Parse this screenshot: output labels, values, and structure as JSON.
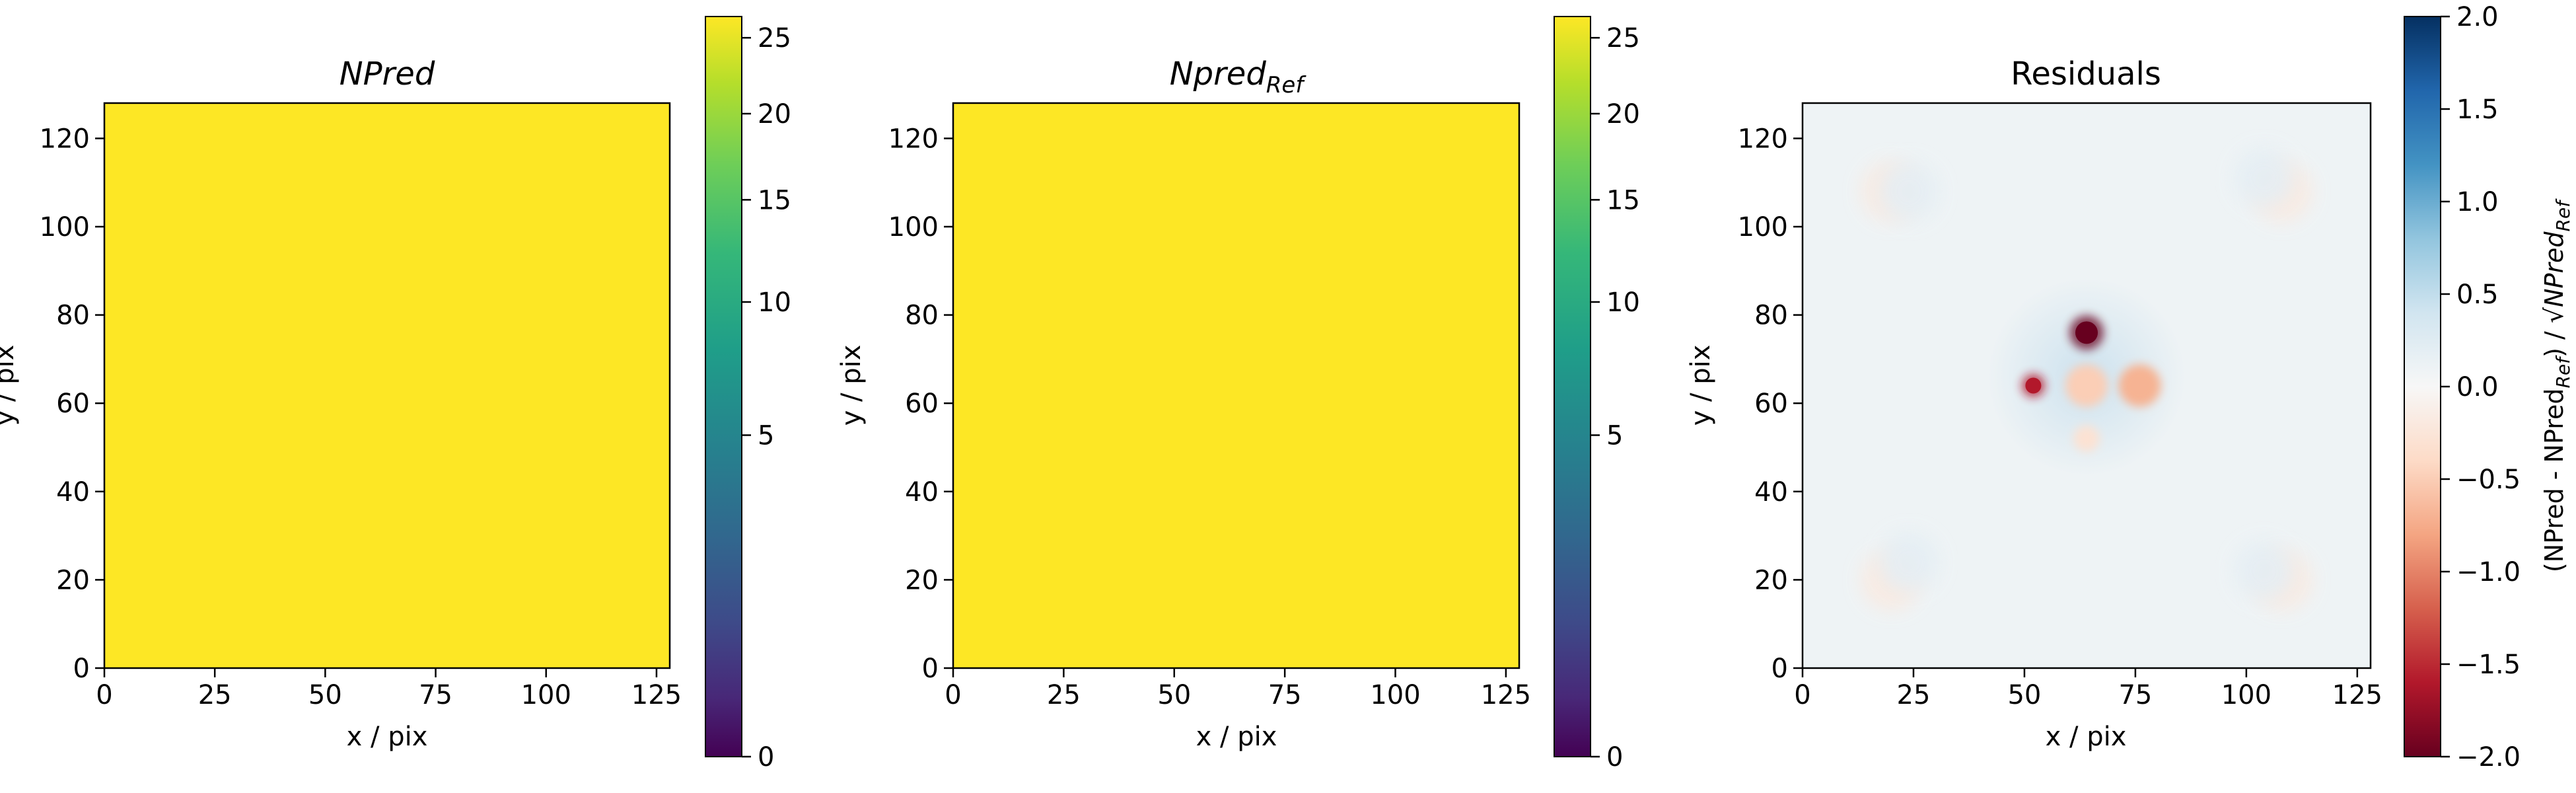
{
  "chart_data": [
    {
      "type": "heatmap",
      "title": "NPred",
      "xlabel": "x / pix",
      "ylabel": "y / pix",
      "xlim": [
        0,
        128
      ],
      "ylim": [
        0,
        128
      ],
      "x_ticks": [
        0,
        25,
        50,
        75,
        100,
        125
      ],
      "y_ticks": [
        0,
        20,
        40,
        60,
        80,
        100,
        120
      ],
      "colormap": "viridis",
      "color_scale": "power-law (sqrt-like)",
      "fill_value": 26,
      "fill_color": "#fde725",
      "colorbar": {
        "range": [
          0,
          26.5
        ],
        "ticks": [
          0,
          5,
          10,
          15,
          20,
          25
        ],
        "label": ""
      }
    },
    {
      "type": "heatmap",
      "title": "Npred",
      "title_subscript": "Ref",
      "xlabel": "x / pix",
      "ylabel": "y / pix",
      "xlim": [
        0,
        128
      ],
      "ylim": [
        0,
        128
      ],
      "x_ticks": [
        0,
        25,
        50,
        75,
        100,
        125
      ],
      "y_ticks": [
        0,
        20,
        40,
        60,
        80,
        100,
        120
      ],
      "colormap": "viridis",
      "color_scale": "power-law (sqrt-like)",
      "fill_value": 26,
      "fill_color": "#fde725",
      "colorbar": {
        "range": [
          0,
          26.5
        ],
        "ticks": [
          0,
          5,
          10,
          15,
          20,
          25
        ],
        "label": ""
      }
    },
    {
      "type": "heatmap",
      "title": "Residuals",
      "xlabel": "x / pix",
      "ylabel": "y / pix",
      "xlim": [
        0,
        128
      ],
      "ylim": [
        0,
        128
      ],
      "x_ticks": [
        0,
        25,
        50,
        75,
        100,
        125
      ],
      "y_ticks": [
        0,
        20,
        40,
        60,
        80,
        100,
        120
      ],
      "colormap": "RdBu",
      "color_scale": "linear",
      "background_value": 0.1,
      "features": [
        {
          "x": 64,
          "y": 76,
          "value": -2.0
        },
        {
          "x": 52,
          "y": 64,
          "value": -1.6
        },
        {
          "x": 76,
          "y": 64,
          "value": -0.7
        },
        {
          "x": 64,
          "y": 64,
          "value": -0.5
        },
        {
          "x": 64,
          "y": 52,
          "value": -0.3
        },
        {
          "x": 20,
          "y": 108,
          "value": -0.2
        },
        {
          "x": 108,
          "y": 108,
          "value": -0.2
        },
        {
          "x": 20,
          "y": 20,
          "value": -0.2
        },
        {
          "x": 108,
          "y": 20,
          "value": -0.2
        },
        {
          "x": 24,
          "y": 108,
          "value": 0.2
        },
        {
          "x": 104,
          "y": 111,
          "value": 0.2
        },
        {
          "x": 24,
          "y": 24,
          "value": 0.2
        },
        {
          "x": 104,
          "y": 22,
          "value": 0.2
        }
      ],
      "colorbar": {
        "range": [
          -2.0,
          2.0
        ],
        "ticks": [
          "2.0",
          "1.5",
          "1.0",
          "0.5",
          "0.0",
          "−0.5",
          "−1.0",
          "−1.5",
          "−2.0"
        ],
        "label": "(NPred - NPred_Ref) / √NPred_Ref",
        "label_parts": [
          "(NPred - NPred",
          "Ref",
          ") / √",
          "NPred",
          "Ref"
        ]
      }
    }
  ]
}
